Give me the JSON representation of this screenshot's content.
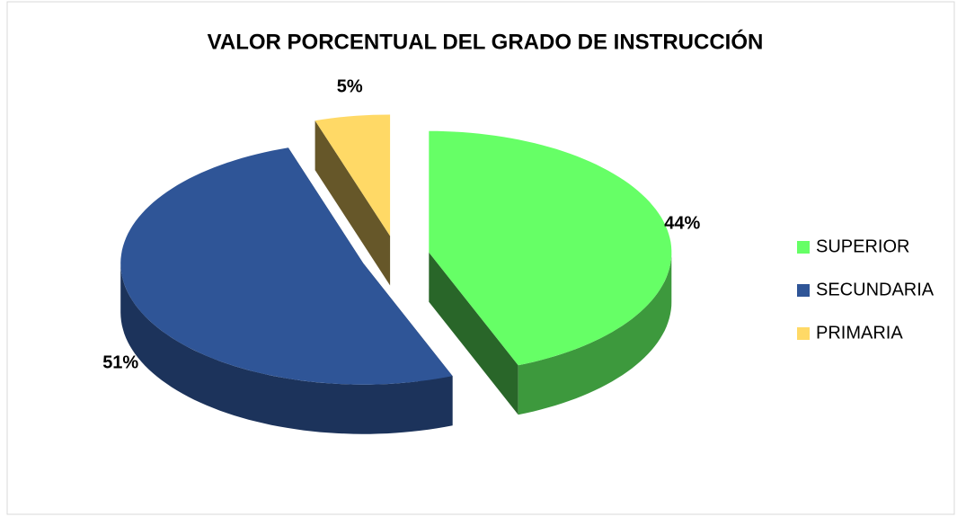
{
  "chart_data": {
    "type": "pie",
    "title": "VALOR PORCENTUAL DEL GRADO DE INSTRUCCIÓN",
    "categories": [
      "SUPERIOR",
      "SECUNDARIA",
      "PRIMARIA"
    ],
    "values": [
      44,
      51,
      5
    ],
    "value_labels": [
      "44%",
      "51%",
      "5%"
    ],
    "colors": [
      "#66ff66",
      "#2f5597",
      "#ffd966"
    ],
    "legend": "right"
  }
}
